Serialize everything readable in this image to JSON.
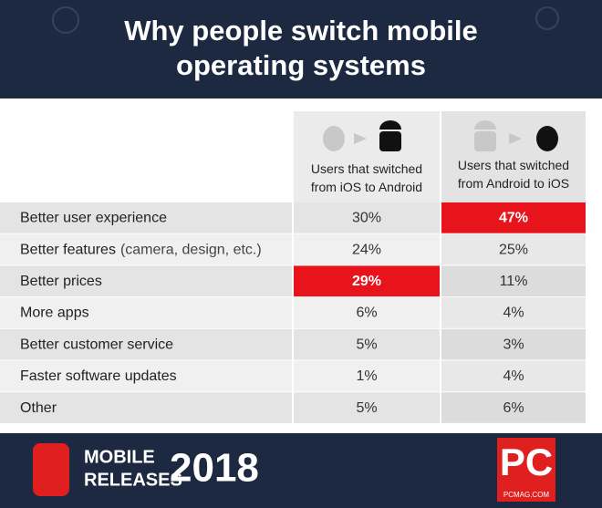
{
  "header": {
    "title_lines": [
      "Why people switch mobile",
      "operating systems"
    ]
  },
  "table": {
    "columns": [
      "Users that switched from iOS to Android",
      "Users that switched from Android to iOS"
    ],
    "rows": [
      {
        "label": "Better user experience",
        "values": [
          "30%",
          "47%"
        ],
        "highlight": [
          false,
          true
        ]
      },
      {
        "label": "Better features",
        "note": "(camera, design, etc.)",
        "values": [
          "24%",
          "25%"
        ],
        "highlight": [
          false,
          false
        ]
      },
      {
        "label": "Better prices",
        "values": [
          "29%",
          "11%"
        ],
        "highlight": [
          true,
          false
        ]
      },
      {
        "label": "More apps",
        "values": [
          "6%",
          "4%"
        ],
        "highlight": [
          false,
          false
        ]
      },
      {
        "label": "Better customer service",
        "values": [
          "5%",
          "3%"
        ],
        "highlight": [
          false,
          false
        ]
      },
      {
        "label": "Faster software updates",
        "values": [
          "1%",
          "4%"
        ],
        "highlight": [
          false,
          false
        ]
      },
      {
        "label": "Other",
        "values": [
          "5%",
          "6%"
        ],
        "highlight": [
          false,
          false
        ]
      }
    ]
  },
  "footer": {
    "line1": "MOBILE",
    "line2": "RELEASES",
    "year": "2018",
    "logo": "PC",
    "site": "PCMAG.COM"
  }
}
